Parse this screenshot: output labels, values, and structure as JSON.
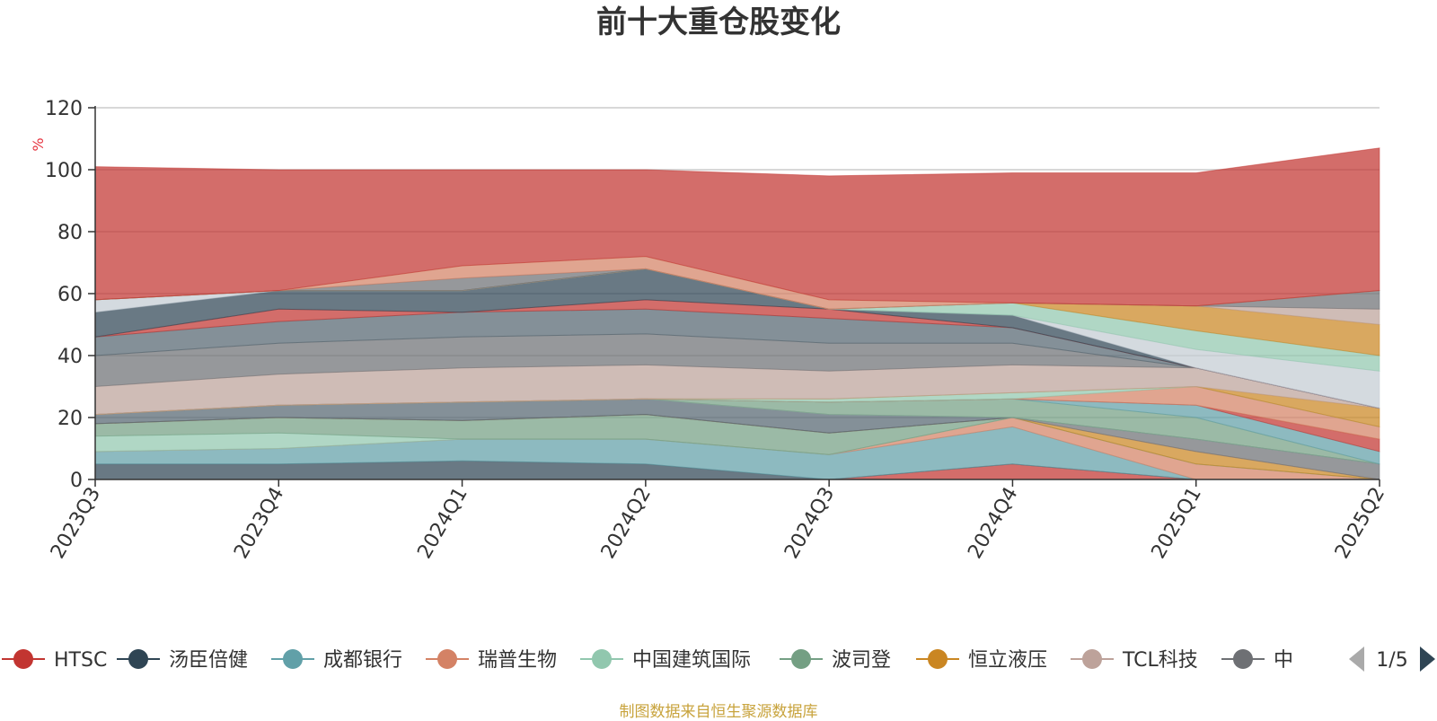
{
  "source_text": "制图数据来自恒生聚源数据库",
  "legend_page": "1/5",
  "chart_data": {
    "type": "area",
    "stacked": true,
    "title": "前十大重仓股变化",
    "ylabel": "%",
    "xlabel": "",
    "ylim": [
      0,
      120
    ],
    "yticks": [
      0,
      20,
      40,
      60,
      80,
      100,
      120
    ],
    "categories": [
      "2023Q3",
      "2023Q4",
      "2024Q1",
      "2024Q2",
      "2024Q3",
      "2024Q4",
      "2025Q1",
      "2025Q2"
    ],
    "grid": true,
    "legend_position": "bottom",
    "series": [
      {
        "name": "HTSC",
        "color": "#c23531",
        "values": [
          0,
          0,
          0,
          0,
          0,
          5,
          0,
          0
        ]
      },
      {
        "name": "汤臣倍健",
        "color": "#2f4554",
        "values": [
          5,
          5,
          6,
          5,
          0,
          0,
          0,
          0
        ]
      },
      {
        "name": "成都银行",
        "color": "#61a0a8",
        "values": [
          4,
          5,
          7,
          8,
          8,
          12,
          0,
          0
        ]
      },
      {
        "name": "瑞普生物",
        "color": "#d48265",
        "values": [
          0,
          0,
          0,
          0,
          0,
          3,
          5,
          0
        ]
      },
      {
        "name": "中国建筑国际",
        "color": "#91c7ae",
        "values": [
          5,
          5,
          0,
          0,
          0,
          0,
          0,
          0
        ]
      },
      {
        "name": "波司登",
        "color": "#749f83",
        "values": [
          4,
          5,
          6,
          8,
          7,
          0,
          0,
          0
        ]
      },
      {
        "name": "恒立液压",
        "color": "#ca8622",
        "values": [
          0,
          0,
          0,
          0,
          0,
          0,
          4,
          0
        ]
      },
      {
        "name": "TCL科技",
        "color": "#bda29a",
        "values": [
          0,
          0,
          0,
          0,
          0,
          0,
          0,
          0
        ]
      },
      {
        "name": "中",
        "color": "#6e7074",
        "values": [
          0,
          0,
          0,
          0,
          0,
          0,
          4,
          5
        ]
      },
      {
        "color": "#546570",
        "values": [
          3,
          4,
          6,
          5,
          6,
          0,
          0,
          0
        ]
      },
      {
        "color": "#c4ccd3",
        "values": [
          0,
          0,
          0,
          0,
          0,
          0,
          0,
          0
        ]
      },
      {
        "color": "#749f83",
        "values": [
          0,
          0,
          0,
          0,
          4,
          6,
          7,
          0
        ]
      },
      {
        "color": "#61a0a8",
        "values": [
          0,
          0,
          0,
          0,
          0,
          0,
          4,
          4
        ]
      },
      {
        "color": "#c23531",
        "values": [
          0,
          0,
          0,
          0,
          0,
          0,
          0,
          4
        ]
      },
      {
        "color": "#d48265",
        "values": [
          0,
          0,
          0,
          0,
          0,
          0,
          6,
          4
        ]
      },
      {
        "color": "#91c7ae",
        "values": [
          0,
          0,
          0,
          0,
          1,
          2,
          0,
          0
        ]
      },
      {
        "color": "#ca8622",
        "values": [
          0,
          0,
          0,
          0,
          0,
          0,
          0,
          6
        ]
      },
      {
        "color": "#bda29a",
        "values": [
          9,
          10,
          11,
          11,
          9,
          9,
          6,
          0
        ]
      },
      {
        "color": "#6e7074",
        "values": [
          10,
          10,
          10,
          10,
          9,
          7,
          0,
          0
        ]
      },
      {
        "color": "#546570",
        "values": [
          6,
          7,
          8,
          8,
          8,
          5,
          0,
          0
        ]
      },
      {
        "color": "#c23531",
        "values": [
          0,
          4,
          0,
          3,
          3,
          0,
          0,
          0
        ]
      },
      {
        "color": "#2f4554",
        "values": [
          8,
          6,
          7,
          10,
          0,
          4,
          0,
          0
        ]
      },
      {
        "color": "#c4ccd3",
        "values": [
          4,
          0,
          0,
          0,
          0,
          0,
          6,
          12
        ]
      },
      {
        "color": "#91c7ae",
        "values": [
          0,
          0,
          0,
          0,
          0,
          4,
          6,
          5
        ]
      },
      {
        "color": "#ca8622",
        "values": [
          0,
          0,
          0,
          0,
          0,
          0,
          8,
          10
        ]
      },
      {
        "color": "#bda29a",
        "values": [
          0,
          0,
          0,
          0,
          0,
          0,
          0,
          5
        ]
      },
      {
        "color": "#6e7074",
        "values": [
          0,
          0,
          4,
          0,
          0,
          0,
          0,
          6
        ]
      },
      {
        "color": "#d48265",
        "values": [
          0,
          0,
          4,
          4,
          3,
          0,
          0,
          0
        ]
      },
      {
        "color": "#c23531",
        "values": [
          43,
          39,
          31,
          28,
          40,
          42,
          43,
          46
        ]
      }
    ]
  }
}
